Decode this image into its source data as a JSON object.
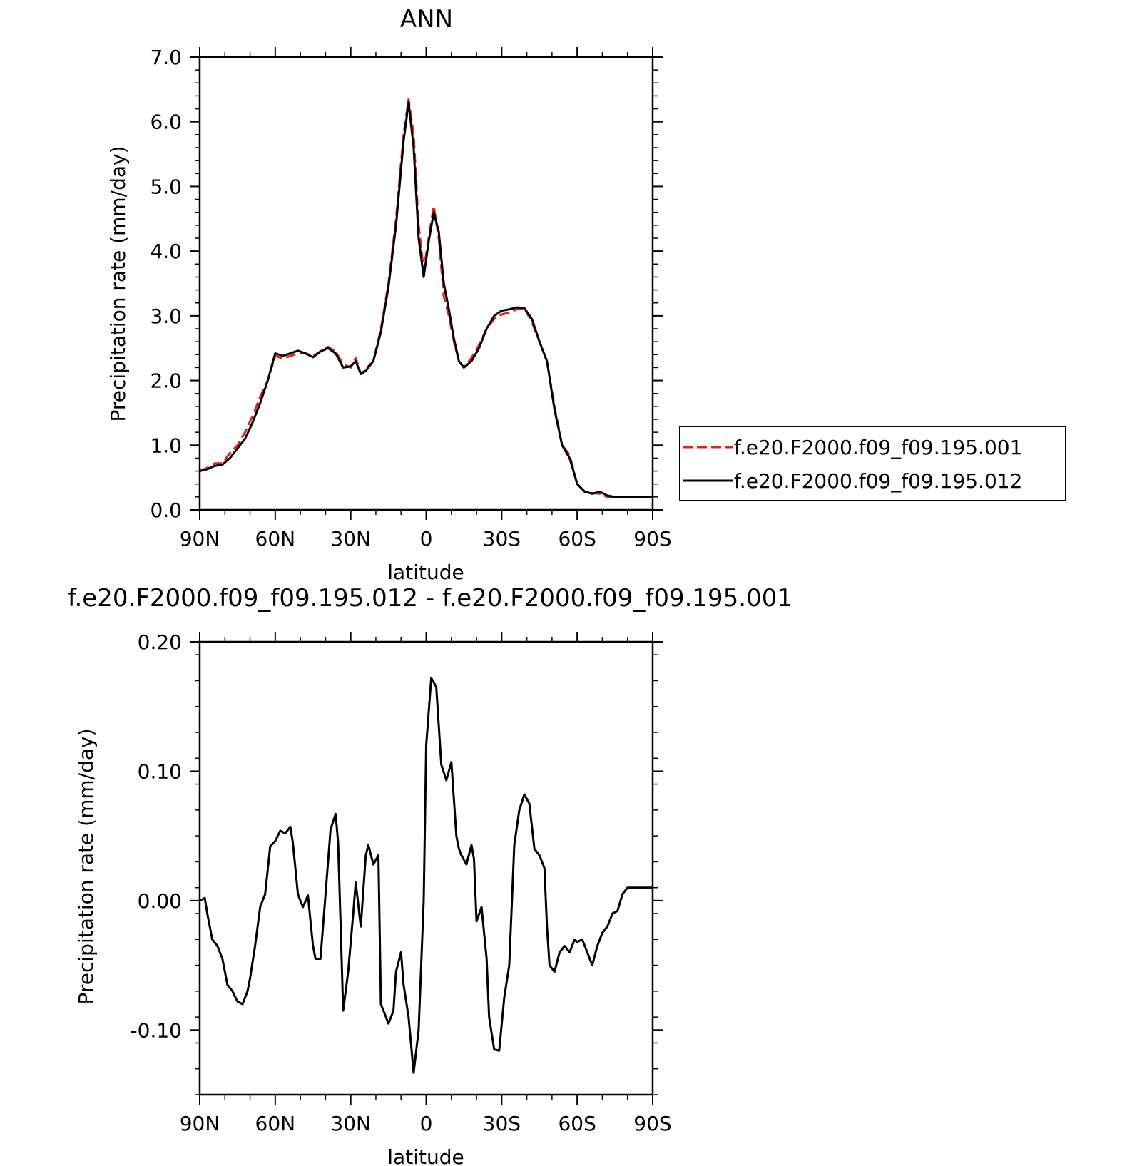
{
  "chart_data": [
    {
      "type": "line",
      "title": "ANN",
      "xlabel": "latitude",
      "ylabel": "Precipitation rate (mm/day)",
      "ylim": [
        0.0,
        7.0
      ],
      "xlim": [
        90,
        -90
      ],
      "x_tick_values": [
        90,
        60,
        30,
        0,
        -30,
        -60,
        -90
      ],
      "x_tick_labels": [
        "90N",
        "60N",
        "30N",
        "0",
        "30S",
        "60S",
        "90S"
      ],
      "y_tick_values": [
        0,
        1,
        2,
        3,
        4,
        5,
        6,
        7
      ],
      "y_tick_labels": [
        "0.0",
        "1.0",
        "2.0",
        "3.0",
        "4.0",
        "5.0",
        "6.0",
        "7.0"
      ],
      "grid": false,
      "legend_position": "right",
      "series": [
        {
          "name": "f.e20.F2000.f09_f09.195.001",
          "color": "#e32119",
          "dash": "dashed",
          "x": [
            90,
            87,
            84,
            81,
            78,
            75,
            72,
            69,
            66,
            63,
            60,
            57,
            54,
            51,
            48,
            45,
            42,
            39,
            36,
            33,
            30,
            28,
            26,
            24,
            21,
            18,
            15,
            12,
            9,
            7,
            5,
            3,
            1,
            -1,
            -3,
            -5,
            -7,
            -9,
            -11,
            -13,
            -15,
            -18,
            -21,
            -24,
            -27,
            -30,
            -33,
            -36,
            -39,
            -42,
            -45,
            -48,
            -51,
            -54,
            -57,
            -60,
            -63,
            -66,
            -69,
            -72,
            -75,
            -78,
            -81,
            -84,
            -87,
            -90
          ],
          "values": [
            0.6,
            0.65,
            0.72,
            0.72,
            0.88,
            1.0,
            1.2,
            1.45,
            1.75,
            2.0,
            2.38,
            2.34,
            2.38,
            2.42,
            2.42,
            2.38,
            2.45,
            2.52,
            2.45,
            2.25,
            2.2,
            2.35,
            2.1,
            2.18,
            2.3,
            2.8,
            3.5,
            4.5,
            5.8,
            6.35,
            5.8,
            4.4,
            3.7,
            4.2,
            4.7,
            4.2,
            3.3,
            3.0,
            2.6,
            2.3,
            2.2,
            2.35,
            2.55,
            2.8,
            2.95,
            3.02,
            3.05,
            3.1,
            3.12,
            2.9,
            2.6,
            2.3,
            1.6,
            1.0,
            0.85,
            0.4,
            0.28,
            0.26,
            0.25,
            0.2,
            0.2,
            0.2,
            0.2,
            0.2,
            0.2,
            0.2
          ]
        },
        {
          "name": "f.e20.F2000.f09_f09.195.012",
          "color": "#000000",
          "dash": "solid",
          "x": [
            90,
            87,
            84,
            81,
            78,
            75,
            72,
            69,
            66,
            63,
            60,
            57,
            54,
            51,
            48,
            45,
            42,
            39,
            36,
            33,
            30,
            28,
            26,
            24,
            21,
            18,
            15,
            12,
            9,
            7,
            5,
            3,
            1,
            -1,
            -3,
            -5,
            -7,
            -9,
            -11,
            -13,
            -15,
            -18,
            -21,
            -24,
            -27,
            -30,
            -33,
            -36,
            -39,
            -42,
            -45,
            -48,
            -51,
            -54,
            -57,
            -60,
            -63,
            -66,
            -69,
            -72,
            -75,
            -78,
            -81,
            -84,
            -87,
            -90
          ],
          "values": [
            0.6,
            0.63,
            0.68,
            0.7,
            0.8,
            0.95,
            1.1,
            1.35,
            1.65,
            2.0,
            2.42,
            2.38,
            2.42,
            2.46,
            2.42,
            2.36,
            2.45,
            2.5,
            2.42,
            2.2,
            2.22,
            2.3,
            2.1,
            2.15,
            2.3,
            2.75,
            3.45,
            4.4,
            5.7,
            6.3,
            5.6,
            4.2,
            3.6,
            4.15,
            4.6,
            4.3,
            3.5,
            3.1,
            2.65,
            2.3,
            2.2,
            2.3,
            2.5,
            2.8,
            3.0,
            3.08,
            3.1,
            3.13,
            3.12,
            2.95,
            2.6,
            2.3,
            1.55,
            1.0,
            0.8,
            0.4,
            0.28,
            0.25,
            0.28,
            0.22,
            0.2,
            0.2,
            0.2,
            0.2,
            0.2,
            0.2
          ]
        }
      ]
    },
    {
      "type": "line",
      "title": "f.e20.F2000.f09_f09.195.012 - f.e20.F2000.f09_f09.195.001",
      "xlabel": "latitude",
      "ylabel": "Precipitation rate (mm/day)",
      "ylim": [
        -0.15,
        0.2
      ],
      "xlim": [
        90,
        -90
      ],
      "x_tick_values": [
        90,
        60,
        30,
        0,
        -30,
        -60,
        -90
      ],
      "x_tick_labels": [
        "90N",
        "60N",
        "30N",
        "0",
        "30S",
        "60S",
        "90S"
      ],
      "y_tick_values": [
        -0.1,
        0.0,
        0.1,
        0.2
      ],
      "y_tick_labels": [
        "-0.10",
        "0.00",
        "0.10",
        "0.20"
      ],
      "grid": false,
      "series": [
        {
          "color": "#000000",
          "dash": "solid",
          "x": [
            90,
            88,
            87,
            85,
            83,
            81,
            79,
            77,
            75,
            73,
            71,
            70,
            68,
            66,
            64,
            62,
            60,
            58,
            56,
            54,
            53,
            52,
            51,
            49,
            47,
            45,
            44,
            42,
            40,
            38,
            36,
            35,
            34,
            33,
            31,
            29,
            28,
            26,
            24,
            23,
            21,
            19,
            18,
            16,
            15,
            13,
            12,
            10,
            9,
            7,
            5,
            3,
            1,
            0,
            -2,
            -4,
            -6,
            -8,
            -10,
            -12,
            -13,
            -14,
            -16,
            -18,
            -19,
            -20,
            -22,
            -24,
            -25,
            -27,
            -29,
            -31,
            -33,
            -35,
            -37,
            -39,
            -41,
            -43,
            -45,
            -47,
            -48,
            -49,
            -51,
            -53,
            -55,
            -57,
            -59,
            -60,
            -62,
            -64,
            -66,
            -68,
            -70,
            -72,
            -74,
            -76,
            -78,
            -80,
            -82,
            -84,
            -86,
            -88,
            -90
          ],
          "values": [
            0.0,
            0.002,
            -0.01,
            -0.03,
            -0.035,
            -0.045,
            -0.065,
            -0.07,
            -0.078,
            -0.08,
            -0.07,
            -0.06,
            -0.035,
            -0.005,
            0.005,
            0.042,
            0.046,
            0.054,
            0.052,
            0.057,
            0.045,
            0.025,
            0.005,
            -0.005,
            0.004,
            -0.035,
            -0.045,
            -0.045,
            0.005,
            0.055,
            0.067,
            0.045,
            -0.02,
            -0.085,
            -0.055,
            -0.01,
            0.014,
            -0.02,
            0.035,
            0.043,
            0.028,
            0.035,
            -0.08,
            -0.09,
            -0.095,
            -0.085,
            -0.055,
            -0.04,
            -0.065,
            -0.09,
            -0.133,
            -0.1,
            0.0,
            0.12,
            0.172,
            0.165,
            0.105,
            0.093,
            0.107,
            0.05,
            0.04,
            0.035,
            0.028,
            0.043,
            0.032,
            -0.016,
            -0.005,
            -0.045,
            -0.09,
            -0.115,
            -0.116,
            -0.075,
            -0.05,
            0.043,
            0.07,
            0.082,
            0.075,
            0.04,
            0.035,
            0.025,
            -0.02,
            -0.05,
            -0.055,
            -0.04,
            -0.035,
            -0.04,
            -0.03,
            -0.032,
            -0.03,
            -0.04,
            -0.05,
            -0.035,
            -0.025,
            -0.02,
            -0.01,
            -0.008,
            0.005,
            0.01,
            0.01,
            0.01,
            0.01,
            0.01,
            0.01
          ]
        }
      ]
    }
  ]
}
